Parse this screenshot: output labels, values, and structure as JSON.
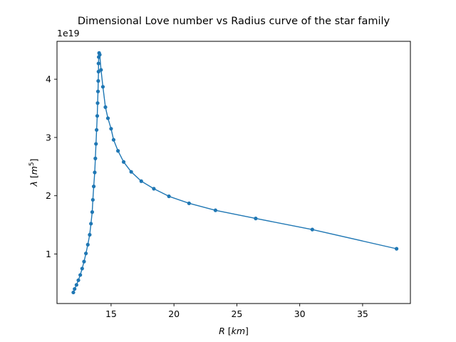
{
  "chart_data": {
    "type": "line",
    "title": "Dimensional Love number vs Radius curve of the star family",
    "xlabel": {
      "symbol": "R",
      "unit": "km"
    },
    "ylabel": {
      "symbol": "λ",
      "unit": "m",
      "unit_exponent": "5"
    },
    "y_offset_label": "1e19",
    "xlim": [
      10.7,
      38.8
    ],
    "ylim": [
      0.15,
      4.65
    ],
    "xticks": [
      15,
      20,
      25,
      30,
      35
    ],
    "yticks": [
      1,
      2,
      3,
      4
    ],
    "grid": false,
    "series": [
      {
        "color": "#1f77b4",
        "marker": "circle",
        "x": [
          12.0,
          12.1,
          12.25,
          12.4,
          12.55,
          12.7,
          12.85,
          13.0,
          13.15,
          13.3,
          13.4,
          13.5,
          13.55,
          13.62,
          13.7,
          13.75,
          13.8,
          13.85,
          13.9,
          13.93,
          13.96,
          13.98,
          14.0,
          14.0,
          14.02,
          14.05,
          14.1,
          14.2,
          14.35,
          14.55,
          14.75,
          15.0,
          15.2,
          15.55,
          16.0,
          16.6,
          17.4,
          18.4,
          19.6,
          21.2,
          23.3,
          26.5,
          31.0,
          37.7
        ],
        "y": [
          0.34,
          0.4,
          0.47,
          0.55,
          0.64,
          0.75,
          0.87,
          1.01,
          1.16,
          1.33,
          1.52,
          1.72,
          1.93,
          2.16,
          2.4,
          2.64,
          2.89,
          3.13,
          3.37,
          3.59,
          3.79,
          3.97,
          4.13,
          4.27,
          4.38,
          4.45,
          4.42,
          4.16,
          3.87,
          3.52,
          3.33,
          3.15,
          2.96,
          2.77,
          2.58,
          2.41,
          2.25,
          2.12,
          1.99,
          1.87,
          1.75,
          1.61,
          1.42,
          1.09
        ]
      }
    ]
  }
}
